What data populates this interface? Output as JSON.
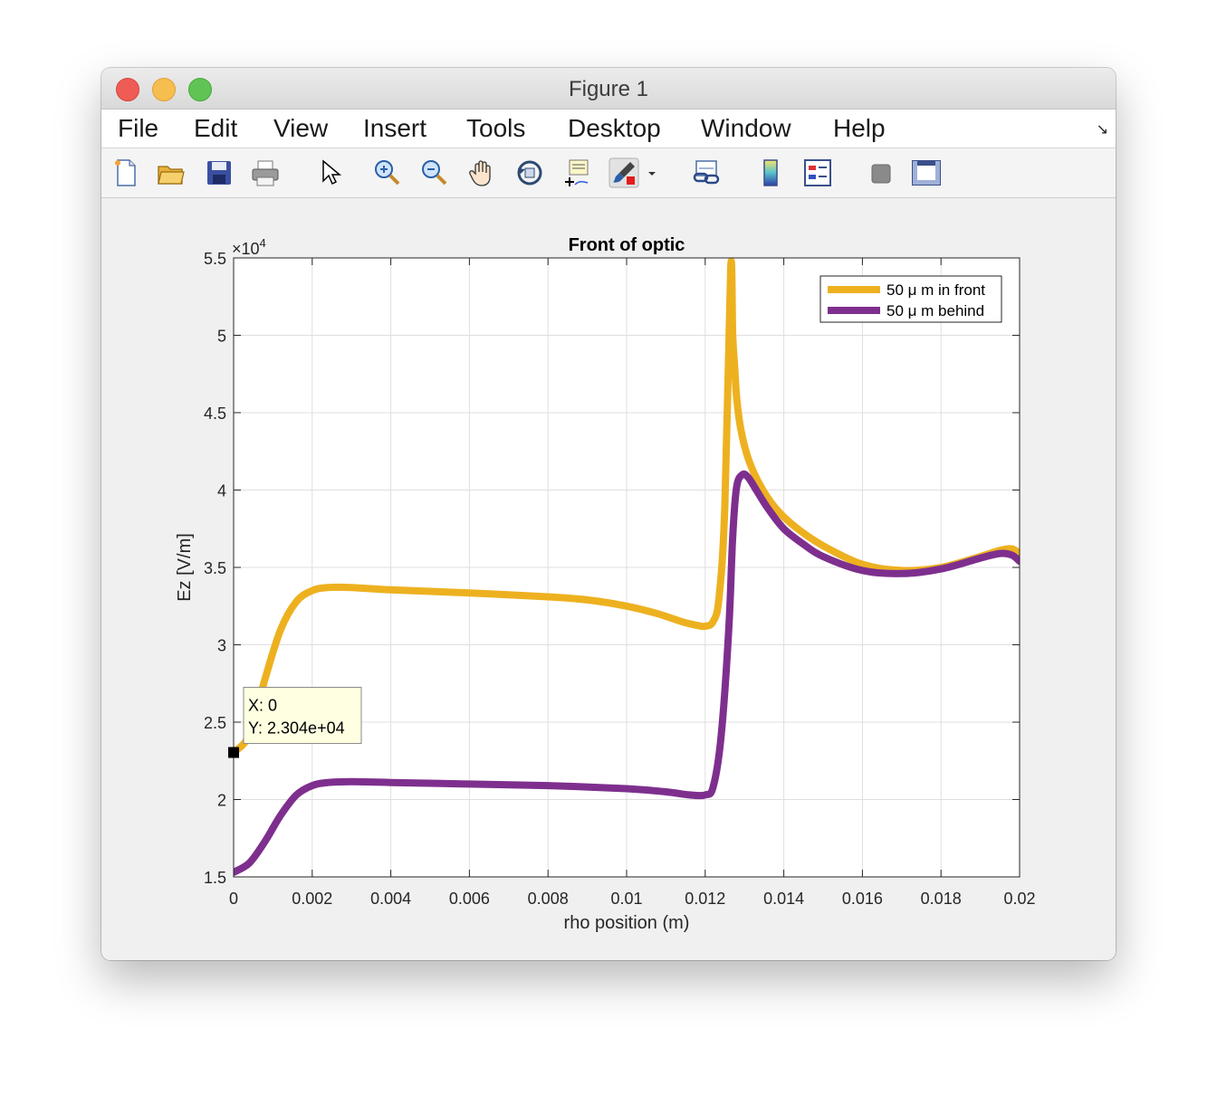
{
  "window": {
    "title": "Figure 1"
  },
  "menu": [
    "File",
    "Edit",
    "View",
    "Insert",
    "Tools",
    "Desktop",
    "Window",
    "Help"
  ],
  "toolbar": {
    "icons": [
      "new-figure-icon",
      "open-file-icon",
      "save-icon",
      "print-icon",
      "pointer-icon",
      "zoom-in-icon",
      "zoom-out-icon",
      "pan-icon",
      "rotate-3d-icon",
      "data-cursor-icon",
      "brush-icon",
      "link-plot-icon",
      "colorbar-icon",
      "legend-icon",
      "hide-plot-tools-icon",
      "show-plot-tools-icon"
    ]
  },
  "chart_data": {
    "type": "line",
    "title": "Front of optic",
    "xlabel": "rho position (m)",
    "ylabel": "Ez [V/m]",
    "y_exponent_label": "×10",
    "y_exponent_power": "4",
    "xlim": [
      0,
      0.02
    ],
    "ylim": [
      15000,
      55000
    ],
    "xticks": [
      "0",
      "0.002",
      "0.004",
      "0.006",
      "0.008",
      "0.01",
      "0.012",
      "0.014",
      "0.016",
      "0.018",
      "0.02"
    ],
    "yticks": [
      "1.5",
      "2",
      "2.5",
      "3",
      "3.5",
      "4",
      "4.5",
      "5",
      "5.5"
    ],
    "grid": true,
    "legend_position": "top-right",
    "series": [
      {
        "name": "50 μ m in front",
        "color": "#EDB120",
        "x": [
          0,
          0.0004,
          0.0008,
          0.0012,
          0.0016,
          0.002,
          0.0024,
          0.003,
          0.004,
          0.006,
          0.008,
          0.009,
          0.01,
          0.0108,
          0.0114,
          0.0118,
          0.012,
          0.0122,
          0.01235,
          0.0125,
          0.01265,
          0.0127,
          0.01275,
          0.0128,
          0.0129,
          0.0131,
          0.0134,
          0.0138,
          0.0143,
          0.015,
          0.016,
          0.017,
          0.018,
          0.019,
          0.0195,
          0.0198,
          0.02
        ],
        "y": [
          23040,
          24200,
          27800,
          31000,
          32800,
          33500,
          33700,
          33700,
          33550,
          33350,
          33100,
          32900,
          32500,
          32000,
          31500,
          31250,
          31200,
          31500,
          33000,
          39000,
          54400,
          50000,
          48000,
          46000,
          44000,
          42000,
          40300,
          38800,
          37600,
          36400,
          35200,
          34800,
          35000,
          35700,
          36100,
          36200,
          35900
        ]
      },
      {
        "name": "50 μ m behind",
        "color": "#7E2F8E",
        "x": [
          0,
          0.0004,
          0.0008,
          0.0012,
          0.0016,
          0.002,
          0.0024,
          0.003,
          0.004,
          0.006,
          0.008,
          0.01,
          0.011,
          0.0116,
          0.012,
          0.0122,
          0.0124,
          0.0126,
          0.0127,
          0.0128,
          0.01295,
          0.0131,
          0.0133,
          0.0136,
          0.014,
          0.0145,
          0.015,
          0.016,
          0.017,
          0.018,
          0.019,
          0.0195,
          0.0198,
          0.02
        ],
        "y": [
          15300,
          15900,
          17300,
          19000,
          20300,
          20900,
          21100,
          21150,
          21100,
          21000,
          20900,
          20700,
          20500,
          20300,
          20300,
          20800,
          24000,
          31000,
          37000,
          40200,
          41000,
          40800,
          40000,
          38800,
          37500,
          36500,
          35700,
          34800,
          34600,
          34900,
          35600,
          35900,
          35800,
          35400
        ]
      }
    ],
    "datatip": {
      "x_text": "X: 0",
      "y_text": "Y: 2.304e+04",
      "x": 0,
      "y": 23040
    }
  }
}
